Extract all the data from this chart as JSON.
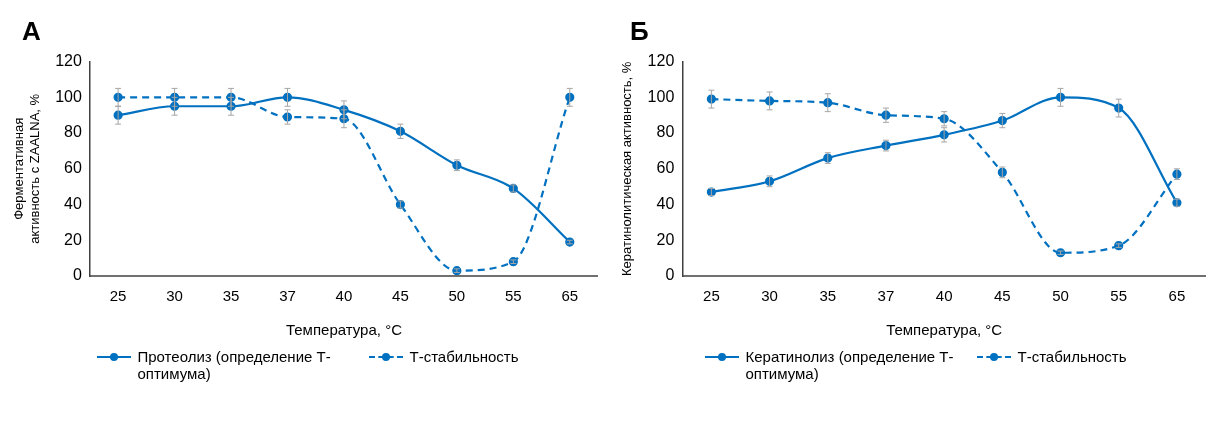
{
  "chart_data": [
    {
      "type": "line",
      "title": "А",
      "xlabel": "Температура, °C",
      "ylabel": "Ферментативная активность с ZAALNA, %",
      "categories": [
        "25",
        "30",
        "35",
        "37",
        "40",
        "45",
        "50",
        "55",
        "65"
      ],
      "ylim": [
        0,
        120
      ],
      "yticks": [
        0,
        20,
        40,
        60,
        80,
        100,
        120
      ],
      "grid": false,
      "legend": "bottom",
      "marker": "circle",
      "series": [
        {
          "name": "Протеолиз (определение Т-оптимума)",
          "color": "#0070c0",
          "line_style": "solid",
          "values": [
            90,
            95,
            95,
            100,
            93,
            81,
            62,
            49,
            19
          ],
          "errors": [
            5,
            5,
            5,
            5,
            5,
            4,
            3,
            2,
            1
          ]
        },
        {
          "name": "Т-стабильность",
          "color": "#0070c0",
          "line_style": "dashed",
          "values": [
            100,
            100,
            100,
            89,
            88,
            40,
            3,
            8,
            100
          ],
          "errors": [
            5,
            5,
            5,
            4,
            5,
            2,
            1,
            1,
            5
          ]
        }
      ]
    },
    {
      "type": "line",
      "title": "Б",
      "xlabel": "Температура, °C",
      "ylabel": "Кератинолитическая активность, %",
      "categories": [
        "25",
        "30",
        "35",
        "37",
        "40",
        "45",
        "50",
        "55",
        "65"
      ],
      "ylim": [
        0,
        120
      ],
      "yticks": [
        0,
        20,
        40,
        60,
        80,
        100,
        120
      ],
      "grid": false,
      "legend": "bottom",
      "marker": "circle",
      "series": [
        {
          "name": "Кератинолиз (определение Т-оптимума)",
          "color": "#0070c0",
          "line_style": "solid",
          "values": [
            47,
            53,
            66,
            73,
            79,
            87,
            100,
            94,
            41
          ],
          "errors": [
            2,
            3,
            3,
            3,
            4,
            4,
            5,
            5,
            2
          ]
        },
        {
          "name": "Т-стабильность",
          "color": "#0070c0",
          "line_style": "dashed",
          "values": [
            99,
            98,
            97,
            90,
            88,
            58,
            13,
            17,
            57
          ],
          "errors": [
            5,
            5,
            5,
            4,
            4,
            3,
            1,
            1,
            3
          ]
        }
      ]
    }
  ]
}
